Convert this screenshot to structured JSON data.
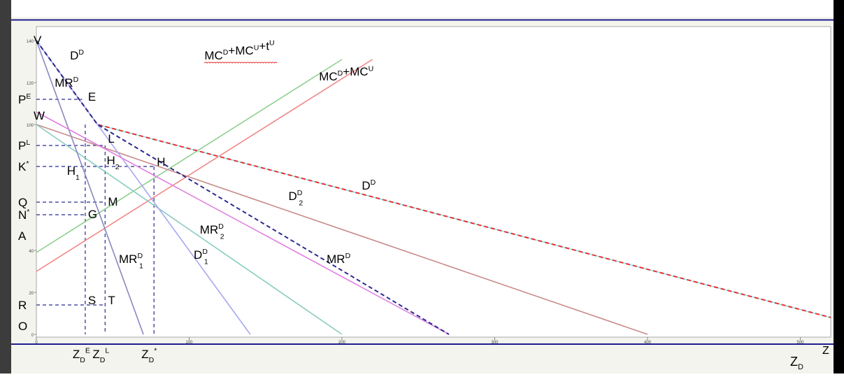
{
  "chart_data": {
    "type": "line",
    "title": "",
    "xlabel": "ZD",
    "ylabel": "",
    "xlim": [
      0,
      520
    ],
    "ylim": [
      0,
      140
    ],
    "y_ticks": [
      {
        "value": 140,
        "text": "140"
      },
      {
        "value": 120,
        "text": "120"
      },
      {
        "value": 100,
        "text": "100"
      },
      {
        "value": 40,
        "text": "40"
      },
      {
        "value": 20,
        "text": "20"
      },
      {
        "value": 0,
        "text": "0"
      }
    ],
    "x_ticks": [
      {
        "value": 0,
        "text": "0"
      },
      {
        "value": 100,
        "text": "100"
      },
      {
        "value": 200,
        "text": "200"
      },
      {
        "value": 300,
        "text": "300"
      },
      {
        "value": 400,
        "text": "400"
      },
      {
        "value": 500,
        "text": "500"
      }
    ],
    "series": [
      {
        "name": "MC^D+MC^U+t^U",
        "color": "#8fcf8f",
        "dash": "",
        "points": [
          [
            0,
            39
          ],
          [
            200,
            131
          ]
        ]
      },
      {
        "name": "MC^D+MC^U",
        "color": "#f08888",
        "dash": "",
        "points": [
          [
            0,
            30
          ],
          [
            220,
            131
          ]
        ]
      },
      {
        "name": "D^D",
        "color": "#88e8ee",
        "dash": "",
        "points": [
          [
            0,
            140
          ],
          [
            40,
            100
          ],
          [
            520,
            8
          ]
        ]
      },
      {
        "name": "D^D",
        "color": "#e83030",
        "dash": "6,4",
        "points": [
          [
            0,
            140
          ],
          [
            40,
            100
          ],
          [
            520,
            8
          ]
        ]
      },
      {
        "name": "D^D_2",
        "color": "#c88a8a",
        "dash": "",
        "points": [
          [
            0,
            100
          ],
          [
            400,
            0
          ]
        ]
      },
      {
        "name": "MR^D_2",
        "color": "#88ccc0",
        "dash": "",
        "points": [
          [
            0,
            100
          ],
          [
            200,
            0
          ]
        ]
      },
      {
        "name": "D^D_1",
        "color": "#a8a8f0",
        "dash": "",
        "points": [
          [
            0,
            140
          ],
          [
            140,
            0
          ]
        ]
      },
      {
        "name": "MR^D_1",
        "color": "#8888c0",
        "dash": "",
        "points": [
          [
            0,
            140
          ],
          [
            70,
            0
          ]
        ]
      },
      {
        "name": "MR^D",
        "color": "#e080e0",
        "dash": "",
        "points": [
          [
            0,
            106
          ],
          [
            270,
            0
          ]
        ]
      },
      {
        "name": "MR^D",
        "color": "#2a2a90",
        "dash": "6,4",
        "points": [
          [
            0,
            140
          ],
          [
            40,
            100
          ],
          [
            270,
            0
          ]
        ]
      }
    ],
    "guides": [
      {
        "points": [
          [
            0,
            112
          ],
          [
            30,
            112
          ]
        ]
      },
      {
        "points": [
          [
            0,
            90
          ],
          [
            45,
            90
          ]
        ]
      },
      {
        "points": [
          [
            0,
            80
          ],
          [
            77,
            80
          ]
        ]
      },
      {
        "points": [
          [
            0,
            63
          ],
          [
            45,
            63
          ]
        ]
      },
      {
        "points": [
          [
            0,
            57
          ],
          [
            33,
            57
          ]
        ]
      },
      {
        "points": [
          [
            0,
            14
          ],
          [
            45,
            14
          ]
        ]
      },
      {
        "points": [
          [
            32,
            100
          ],
          [
            32,
            0
          ]
        ]
      },
      {
        "points": [
          [
            45,
            90
          ],
          [
            45,
            0
          ]
        ]
      },
      {
        "points": [
          [
            77,
            80
          ],
          [
            77,
            0
          ]
        ]
      }
    ],
    "point_labels": [
      {
        "text": "V",
        "x": 0,
        "y": 140
      },
      {
        "text": "W",
        "x": 0,
        "y": 104
      },
      {
        "text": "E",
        "x": 32,
        "y": 113
      },
      {
        "text": "L",
        "x": 45,
        "y": 93
      },
      {
        "text": "H",
        "x": 77,
        "y": 82
      },
      {
        "text": "M",
        "x": 45,
        "y": 63
      },
      {
        "text": "G",
        "x": 32,
        "y": 57
      },
      {
        "text": "S",
        "x": 32,
        "y": 16
      },
      {
        "text": "T",
        "x": 45,
        "y": 16
      }
    ],
    "axis_letters": [
      {
        "text": "P",
        "sup": "E",
        "y": 112
      },
      {
        "text": "P",
        "sup": "L",
        "y": 90
      },
      {
        "text": "K",
        "sup": "*",
        "y": 80
      },
      {
        "text": "Q",
        "sup": "",
        "y": 63
      },
      {
        "text": "N",
        "sup": "*",
        "y": 57
      },
      {
        "text": "A",
        "sup": "",
        "y": 47
      },
      {
        "text": "R",
        "sup": "",
        "y": 14
      },
      {
        "text": "O",
        "sup": "",
        "y": 4
      }
    ],
    "x_markers": [
      {
        "base": "Z",
        "sub": "D",
        "sup": "E",
        "x": 32
      },
      {
        "base": "Z",
        "sub": "D",
        "sup": "L",
        "x": 45
      },
      {
        "base": "Z",
        "sub": "D",
        "sup": "*",
        "x": 77
      }
    ],
    "curve_labels": [
      {
        "base": "D",
        "sup": "D",
        "sub": "",
        "x": 22,
        "y": 131
      },
      {
        "base": "MR",
        "sup": "D",
        "sub": "",
        "x": 12,
        "y": 118
      },
      {
        "base": "MC",
        "sup": "D",
        "sub": "",
        "tail": "+MC^U+t^U",
        "x": 110,
        "y": 131
      },
      {
        "base": "MC",
        "sup": "D",
        "sub": "",
        "tail": "+MC^U",
        "x": 185,
        "y": 121
      },
      {
        "base": "H",
        "sup": "",
        "sub": "1",
        "x": 20,
        "y": 76
      },
      {
        "base": "H",
        "sup": "",
        "sub": "2",
        "x": 46,
        "y": 81
      },
      {
        "base": "D",
        "sup": "D",
        "sub": "",
        "x": 213,
        "y": 69
      },
      {
        "base": "D",
        "sup": "D",
        "sub": "2",
        "x": 165,
        "y": 64
      },
      {
        "base": "MR",
        "sup": "D",
        "sub": "2",
        "x": 107,
        "y": 48
      },
      {
        "base": "MR",
        "sup": "D",
        "sub": "1",
        "x": 54,
        "y": 34
      },
      {
        "base": "D",
        "sup": "D",
        "sub": "1",
        "x": 103,
        "y": 36
      },
      {
        "base": "MR",
        "sup": "D",
        "sub": "",
        "x": 190,
        "y": 34
      }
    ]
  }
}
